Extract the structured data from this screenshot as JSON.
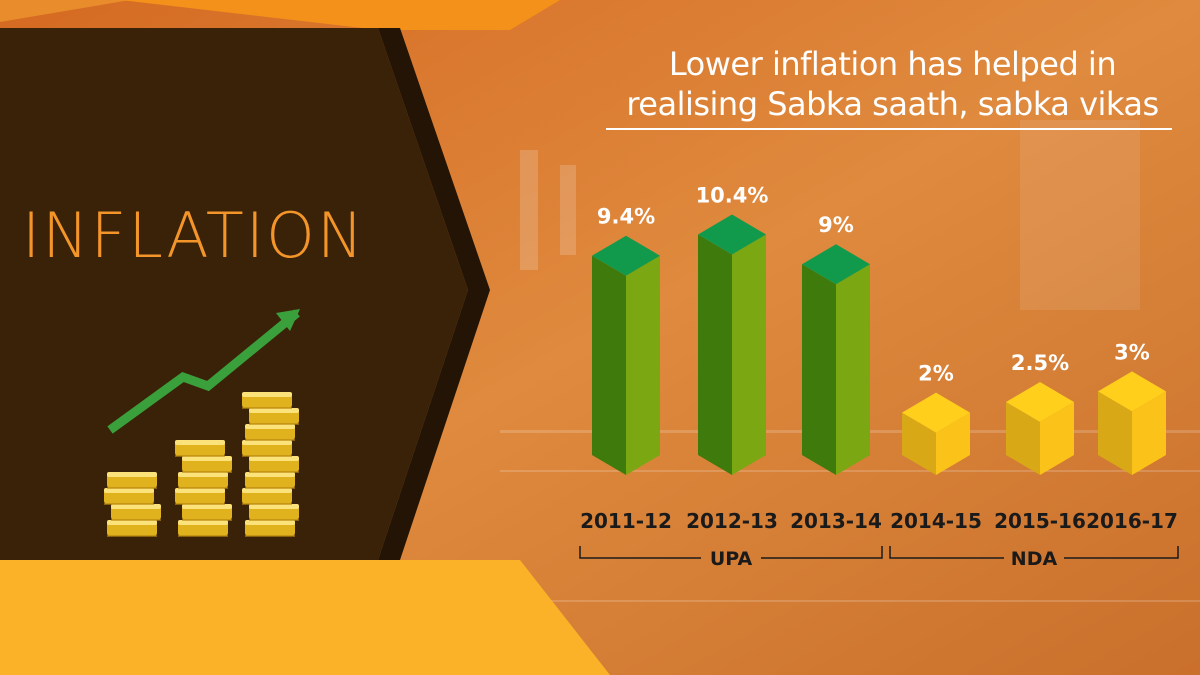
{
  "left_panel": {
    "heading": "INFLATION"
  },
  "chart_data": {
    "type": "bar",
    "title": "Lower inflation has helped in realising Sabka saath, sabka vikas",
    "title_lines": [
      "Lower inflation has helped in",
      "realising Sabka saath, sabka vikas"
    ],
    "categories": [
      "2011-12",
      "2012-13",
      "2013-14",
      "2014-15",
      "2015-16",
      "2016-17"
    ],
    "values": [
      9.4,
      10.4,
      9,
      2,
      2.5,
      3
    ],
    "value_labels": [
      "9.4%",
      "10.4%",
      "9%",
      "2%",
      "2.5%",
      "3%"
    ],
    "unit": "%",
    "groups": [
      {
        "label": "UPA",
        "categories": [
          "2011-12",
          "2012-13",
          "2013-14"
        ],
        "color": "#7aa712"
      },
      {
        "label": "NDA",
        "categories": [
          "2014-15",
          "2015-16",
          "2016-17"
        ],
        "color": "#fbc31a"
      }
    ],
    "grid": false,
    "legend": "none"
  },
  "colors": {
    "background_orange": "#d9782a",
    "dark_panel": "#3a2208",
    "accent_yellow": "#fbb128",
    "upa_bar": "#7aa712",
    "nda_bar": "#fbc31a",
    "arrow_green": "#3aa03c"
  },
  "icons": [
    "rising-trend-arrow-icon",
    "coin-stacks-icon"
  ]
}
